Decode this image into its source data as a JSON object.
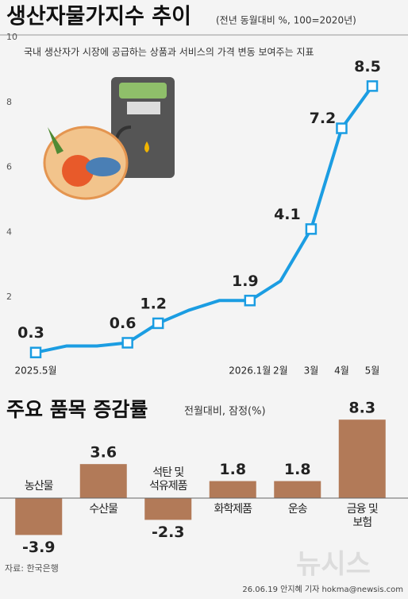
{
  "line": {
    "chart_data": {
      "type": "line",
      "title": "생산자물가지수 추이",
      "subtitle": "(전년 동월대비 %, 100=2020년)",
      "note": "국내 생산자가 시장에 공급하는 상품과 서비스의 가격 변동 보여주는 지표",
      "categories": [
        "2025.5월",
        null,
        null,
        null,
        null,
        null,
        null,
        "2026.1월",
        "2월",
        "3월",
        "4월",
        "5월"
      ],
      "values": [
        0.3,
        0.5,
        0.5,
        0.6,
        1.2,
        1.6,
        1.9,
        1.9,
        2.5,
        4.1,
        7.2,
        8.5
      ],
      "value_labels": [
        "0.3",
        null,
        null,
        "0.6",
        "1.2",
        null,
        null,
        "1.9",
        null,
        "4.1",
        "7.2",
        "8.5"
      ],
      "color": "#1b9de2",
      "ylim": [
        0,
        10
      ],
      "yticks": [
        2,
        4,
        6,
        8,
        10
      ]
    }
  },
  "bars": {
    "chart_data": {
      "type": "bar",
      "title": "주요 품목 증감률",
      "subtitle": "전월대비, 잠정(%)",
      "categories": [
        "농산물",
        "수산물",
        "석탄 및\n석유제품",
        "화학제품",
        "운송",
        "금융 및\n보험"
      ],
      "values": [
        -3.9,
        3.6,
        -2.3,
        1.8,
        1.8,
        8.3
      ],
      "color": "#b27a58"
    }
  },
  "footer": {
    "source": "자료: 한국은행",
    "credit": "26.06.19 안지혜 기자 hokma@newsis.com",
    "watermark": "뉴시스"
  }
}
